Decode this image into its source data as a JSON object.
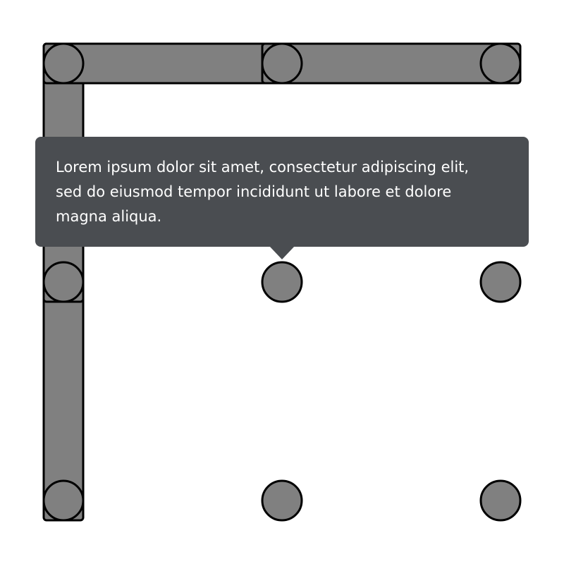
{
  "pattern_lock": {
    "grid_size": 3,
    "connected_sequence": [
      7,
      4,
      1,
      2,
      3
    ],
    "colors": {
      "background": "#ffffff",
      "dot_fill": "#808080",
      "outline": "#000000"
    }
  },
  "tooltip": {
    "text_lines": [
      "Lorem ipsum dolor sit amet, consectetur adipiscing elit,",
      "sed do eiusmod tempor incididunt ut labore et dolore",
      "magna aliqua."
    ],
    "background_color": "#4a4d51",
    "text_color": "#ffffff",
    "anchored_to_dot": 5
  }
}
